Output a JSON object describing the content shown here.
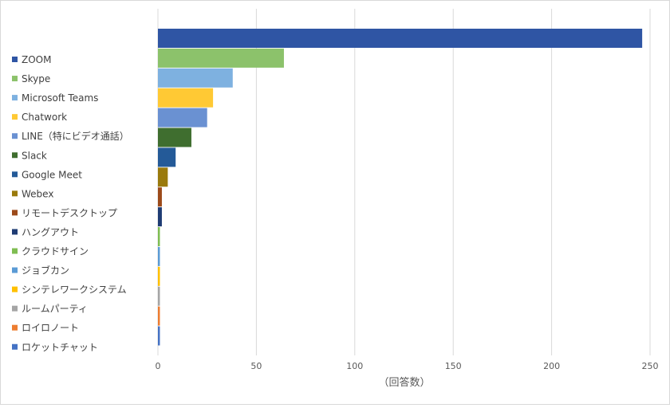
{
  "chart_data": {
    "type": "bar",
    "orientation": "horizontal",
    "title": "",
    "xlabel": "（回答数）",
    "ylabel": "",
    "xlim": [
      0,
      250
    ],
    "x_ticks": [
      0,
      50,
      100,
      150,
      200,
      250
    ],
    "grid": "vertical",
    "legend_position": "left",
    "categories": [
      "ZOOM",
      "Skype",
      "Microsoft Teams",
      "Chatwork",
      "LINE（特にビデオ通話）",
      "Slack",
      "Google Meet",
      "Webex",
      "リモートデスクトップ",
      "ハングアウト",
      "クラウドサイン",
      "ジョブカン",
      "シンテレワークシステム",
      "ルームパーティ",
      "ロイロノート",
      "ロケットチャット"
    ],
    "values": [
      246,
      64,
      38,
      28,
      25,
      17,
      9,
      5,
      2,
      2,
      1,
      1,
      1,
      1,
      1,
      1
    ],
    "colors": [
      "#2f55a4",
      "#8cc26b",
      "#7eb1e0",
      "#ffc934",
      "#6a91d2",
      "#3f6e2f",
      "#245a98",
      "#9a7a0c",
      "#9c4a1a",
      "#1f3c74",
      "#7fbd52",
      "#5b9bd5",
      "#ffc000",
      "#a5a5a5",
      "#ed7d31",
      "#4472c4"
    ]
  }
}
